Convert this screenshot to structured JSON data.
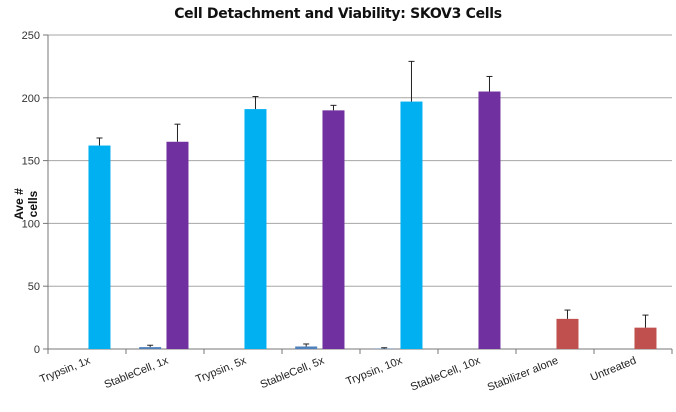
{
  "chart_data": {
    "type": "bar",
    "title": "Cell Detachment and Viability: SKOV3 Cells",
    "xlabel": "",
    "ylabel": "Ave # cells",
    "ylim": [
      0,
      250
    ],
    "yticks": [
      0,
      50,
      100,
      150,
      200,
      250
    ],
    "grid": true,
    "legend": "none",
    "categories": [
      "Trypsin, 1x",
      "StableCell, 1x",
      "Trypsin, 5x",
      "StableCell, 5x",
      "Trypsin, 10x",
      "StableCell, 10x",
      "Stabilizer alone",
      "Untreated"
    ],
    "series": [
      {
        "values": [
          0,
          1.5,
          0,
          2,
          0.3,
          0,
          0,
          0
        ],
        "error_upper": [
          0,
          3,
          0,
          4,
          1,
          0,
          0,
          0
        ],
        "colors": [
          "#4f81bd",
          "#4f81bd",
          "#4f81bd",
          "#4f81bd",
          "#4f81bd",
          "#4f81bd",
          "#4f81bd",
          "#4f81bd"
        ]
      },
      {
        "values": [
          162,
          165,
          191,
          190,
          197,
          205,
          24,
          17
        ],
        "error_upper": [
          168,
          179,
          201,
          194,
          229,
          217,
          31,
          27
        ],
        "colors": [
          "#00b0f0",
          "#7030a0",
          "#00b0f0",
          "#7030a0",
          "#00b0f0",
          "#7030a0",
          "#c0504d",
          "#c0504d"
        ]
      }
    ]
  }
}
